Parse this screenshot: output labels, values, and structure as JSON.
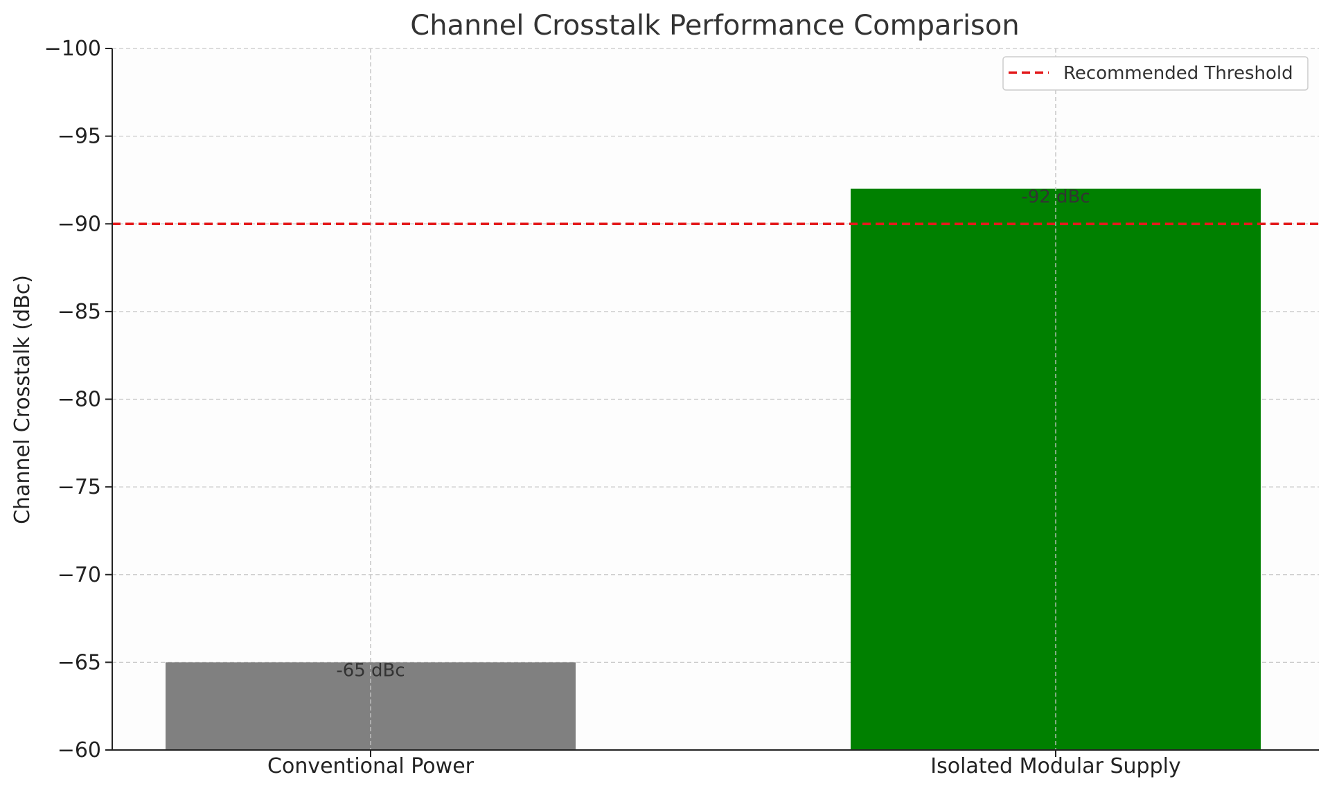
{
  "chart_data": {
    "type": "bar",
    "title": "Channel Crosstalk Performance Comparison",
    "xlabel": "",
    "ylabel": "Channel Crosstalk (dBc)",
    "categories": [
      "Conventional Power",
      "Isolated Modular Supply"
    ],
    "values": [
      -65,
      -92
    ],
    "value_labels": [
      "-65 dBc",
      "-92 dBc"
    ],
    "bar_colors": [
      "#808080",
      "#008000"
    ],
    "ylim": [
      -60,
      -100
    ],
    "y_inverted": true,
    "yticks": [
      -100,
      -95,
      -90,
      -85,
      -80,
      -75,
      -70,
      -65,
      -60
    ],
    "ytick_labels": [
      "−100",
      "−95",
      "−90",
      "−85",
      "−80",
      "−75",
      "−70",
      "−65",
      "−60"
    ],
    "grid": true,
    "legend": {
      "placement": "top-right",
      "entries": [
        {
          "label": "Recommended Threshold",
          "color": "#e31a1c",
          "style": "dashed"
        }
      ]
    },
    "threshold": {
      "value": -90,
      "label": "Recommended Threshold",
      "color": "#e31a1c"
    }
  }
}
